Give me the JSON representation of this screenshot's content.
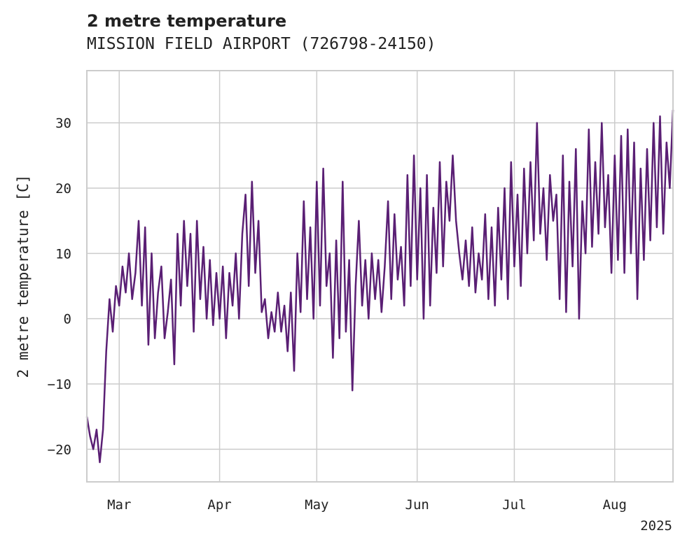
{
  "chart_data": {
    "type": "line",
    "title": "2 metre temperature",
    "subtitle": "MISSION FIELD AIRPORT (726798-24150)",
    "ylabel": "2 metre temperature [C]",
    "xlabel": "",
    "year_label": "2025",
    "ylim": [
      -25,
      38
    ],
    "xlim": [
      "2025-02-19",
      "2025-08-19"
    ],
    "grid": true,
    "colors": {
      "line": "#5a1f74",
      "grid": "#cccccc",
      "frame": "#cccccc"
    },
    "y_ticks": [
      {
        "value": -20,
        "label": "−20"
      },
      {
        "value": -10,
        "label": "−10"
      },
      {
        "value": 0,
        "label": "0"
      },
      {
        "value": 10,
        "label": "10"
      },
      {
        "value": 20,
        "label": "20"
      },
      {
        "value": 30,
        "label": "30"
      }
    ],
    "x_ticks": [
      {
        "date": "2025-03-01",
        "label": "Mar"
      },
      {
        "date": "2025-04-01",
        "label": "Apr"
      },
      {
        "date": "2025-05-01",
        "label": "May"
      },
      {
        "date": "2025-06-01",
        "label": "Jun"
      },
      {
        "date": "2025-07-01",
        "label": "Jul"
      },
      {
        "date": "2025-08-01",
        "label": "Aug"
      }
    ],
    "series": [
      {
        "points": [
          [
            "2025-02-19",
            -15
          ],
          [
            "2025-02-20",
            -18
          ],
          [
            "2025-02-21",
            -20
          ],
          [
            "2025-02-22",
            -17
          ],
          [
            "2025-02-23",
            -22
          ],
          [
            "2025-02-24",
            -17
          ],
          [
            "2025-02-25",
            -5
          ],
          [
            "2025-02-26",
            3
          ],
          [
            "2025-02-27",
            -2
          ],
          [
            "2025-02-28",
            5
          ],
          [
            "2025-03-01",
            2
          ],
          [
            "2025-03-02",
            8
          ],
          [
            "2025-03-03",
            4
          ],
          [
            "2025-03-04",
            10
          ],
          [
            "2025-03-05",
            3
          ],
          [
            "2025-03-06",
            7
          ],
          [
            "2025-03-07",
            15
          ],
          [
            "2025-03-08",
            2
          ],
          [
            "2025-03-09",
            14
          ],
          [
            "2025-03-10",
            -4
          ],
          [
            "2025-03-11",
            10
          ],
          [
            "2025-03-12",
            -3
          ],
          [
            "2025-03-13",
            4
          ],
          [
            "2025-03-14",
            8
          ],
          [
            "2025-03-15",
            -3
          ],
          [
            "2025-03-16",
            1
          ],
          [
            "2025-03-17",
            6
          ],
          [
            "2025-03-18",
            -7
          ],
          [
            "2025-03-19",
            13
          ],
          [
            "2025-03-20",
            2
          ],
          [
            "2025-03-21",
            15
          ],
          [
            "2025-03-22",
            5
          ],
          [
            "2025-03-23",
            13
          ],
          [
            "2025-03-24",
            -2
          ],
          [
            "2025-03-25",
            15
          ],
          [
            "2025-03-26",
            3
          ],
          [
            "2025-03-27",
            11
          ],
          [
            "2025-03-28",
            0
          ],
          [
            "2025-03-29",
            9
          ],
          [
            "2025-03-30",
            -1
          ],
          [
            "2025-03-31",
            7
          ],
          [
            "2025-04-01",
            0
          ],
          [
            "2025-04-02",
            8
          ],
          [
            "2025-04-03",
            -3
          ],
          [
            "2025-04-04",
            7
          ],
          [
            "2025-04-05",
            2
          ],
          [
            "2025-04-06",
            10
          ],
          [
            "2025-04-07",
            0
          ],
          [
            "2025-04-08",
            13
          ],
          [
            "2025-04-09",
            19
          ],
          [
            "2025-04-10",
            5
          ],
          [
            "2025-04-11",
            21
          ],
          [
            "2025-04-12",
            7
          ],
          [
            "2025-04-13",
            15
          ],
          [
            "2025-04-14",
            1
          ],
          [
            "2025-04-15",
            3
          ],
          [
            "2025-04-16",
            -3
          ],
          [
            "2025-04-17",
            1
          ],
          [
            "2025-04-18",
            -2
          ],
          [
            "2025-04-19",
            4
          ],
          [
            "2025-04-20",
            -2
          ],
          [
            "2025-04-21",
            2
          ],
          [
            "2025-04-22",
            -5
          ],
          [
            "2025-04-23",
            4
          ],
          [
            "2025-04-24",
            -8
          ],
          [
            "2025-04-25",
            10
          ],
          [
            "2025-04-26",
            1
          ],
          [
            "2025-04-27",
            18
          ],
          [
            "2025-04-28",
            3
          ],
          [
            "2025-04-29",
            14
          ],
          [
            "2025-04-30",
            0
          ],
          [
            "2025-05-01",
            21
          ],
          [
            "2025-05-02",
            2
          ],
          [
            "2025-05-03",
            23
          ],
          [
            "2025-05-04",
            5
          ],
          [
            "2025-05-05",
            10
          ],
          [
            "2025-05-06",
            -6
          ],
          [
            "2025-05-07",
            12
          ],
          [
            "2025-05-08",
            -3
          ],
          [
            "2025-05-09",
            21
          ],
          [
            "2025-05-10",
            -2
          ],
          [
            "2025-05-11",
            9
          ],
          [
            "2025-05-12",
            -11
          ],
          [
            "2025-05-13",
            5
          ],
          [
            "2025-05-14",
            15
          ],
          [
            "2025-05-15",
            2
          ],
          [
            "2025-05-16",
            9
          ],
          [
            "2025-05-17",
            0
          ],
          [
            "2025-05-18",
            10
          ],
          [
            "2025-05-19",
            3
          ],
          [
            "2025-05-20",
            9
          ],
          [
            "2025-05-21",
            1
          ],
          [
            "2025-05-22",
            8
          ],
          [
            "2025-05-23",
            18
          ],
          [
            "2025-05-24",
            3
          ],
          [
            "2025-05-25",
            16
          ],
          [
            "2025-05-26",
            6
          ],
          [
            "2025-05-27",
            11
          ],
          [
            "2025-05-28",
            2
          ],
          [
            "2025-05-29",
            22
          ],
          [
            "2025-05-30",
            5
          ],
          [
            "2025-05-31",
            25
          ],
          [
            "2025-06-01",
            6
          ],
          [
            "2025-06-02",
            20
          ],
          [
            "2025-06-03",
            0
          ],
          [
            "2025-06-04",
            22
          ],
          [
            "2025-06-05",
            2
          ],
          [
            "2025-06-06",
            17
          ],
          [
            "2025-06-07",
            7
          ],
          [
            "2025-06-08",
            24
          ],
          [
            "2025-06-09",
            8
          ],
          [
            "2025-06-10",
            21
          ],
          [
            "2025-06-11",
            15
          ],
          [
            "2025-06-12",
            25
          ],
          [
            "2025-06-13",
            15
          ],
          [
            "2025-06-14",
            10
          ],
          [
            "2025-06-15",
            6
          ],
          [
            "2025-06-16",
            12
          ],
          [
            "2025-06-17",
            5
          ],
          [
            "2025-06-18",
            14
          ],
          [
            "2025-06-19",
            4
          ],
          [
            "2025-06-20",
            10
          ],
          [
            "2025-06-21",
            6
          ],
          [
            "2025-06-22",
            16
          ],
          [
            "2025-06-23",
            3
          ],
          [
            "2025-06-24",
            14
          ],
          [
            "2025-06-25",
            2
          ],
          [
            "2025-06-26",
            17
          ],
          [
            "2025-06-27",
            6
          ],
          [
            "2025-06-28",
            20
          ],
          [
            "2025-06-29",
            3
          ],
          [
            "2025-06-30",
            24
          ],
          [
            "2025-07-01",
            8
          ],
          [
            "2025-07-02",
            19
          ],
          [
            "2025-07-03",
            5
          ],
          [
            "2025-07-04",
            23
          ],
          [
            "2025-07-05",
            10
          ],
          [
            "2025-07-06",
            24
          ],
          [
            "2025-07-07",
            12
          ],
          [
            "2025-07-08",
            30
          ],
          [
            "2025-07-09",
            13
          ],
          [
            "2025-07-10",
            20
          ],
          [
            "2025-07-11",
            9
          ],
          [
            "2025-07-12",
            22
          ],
          [
            "2025-07-13",
            15
          ],
          [
            "2025-07-14",
            19
          ],
          [
            "2025-07-15",
            3
          ],
          [
            "2025-07-16",
            25
          ],
          [
            "2025-07-17",
            1
          ],
          [
            "2025-07-18",
            21
          ],
          [
            "2025-07-19",
            8
          ],
          [
            "2025-07-20",
            26
          ],
          [
            "2025-07-21",
            0
          ],
          [
            "2025-07-22",
            18
          ],
          [
            "2025-07-23",
            10
          ],
          [
            "2025-07-24",
            29
          ],
          [
            "2025-07-25",
            11
          ],
          [
            "2025-07-26",
            24
          ],
          [
            "2025-07-27",
            13
          ],
          [
            "2025-07-28",
            30
          ],
          [
            "2025-07-29",
            14
          ],
          [
            "2025-07-30",
            22
          ],
          [
            "2025-07-31",
            7
          ],
          [
            "2025-08-01",
            25
          ],
          [
            "2025-08-02",
            9
          ],
          [
            "2025-08-03",
            28
          ],
          [
            "2025-08-04",
            7
          ],
          [
            "2025-08-05",
            29
          ],
          [
            "2025-08-06",
            10
          ],
          [
            "2025-08-07",
            27
          ],
          [
            "2025-08-08",
            3
          ],
          [
            "2025-08-09",
            23
          ],
          [
            "2025-08-10",
            9
          ],
          [
            "2025-08-11",
            26
          ],
          [
            "2025-08-12",
            12
          ],
          [
            "2025-08-13",
            30
          ],
          [
            "2025-08-14",
            14
          ],
          [
            "2025-08-15",
            31
          ],
          [
            "2025-08-16",
            13
          ],
          [
            "2025-08-17",
            27
          ],
          [
            "2025-08-18",
            20
          ],
          [
            "2025-08-19",
            32
          ]
        ]
      }
    ]
  }
}
